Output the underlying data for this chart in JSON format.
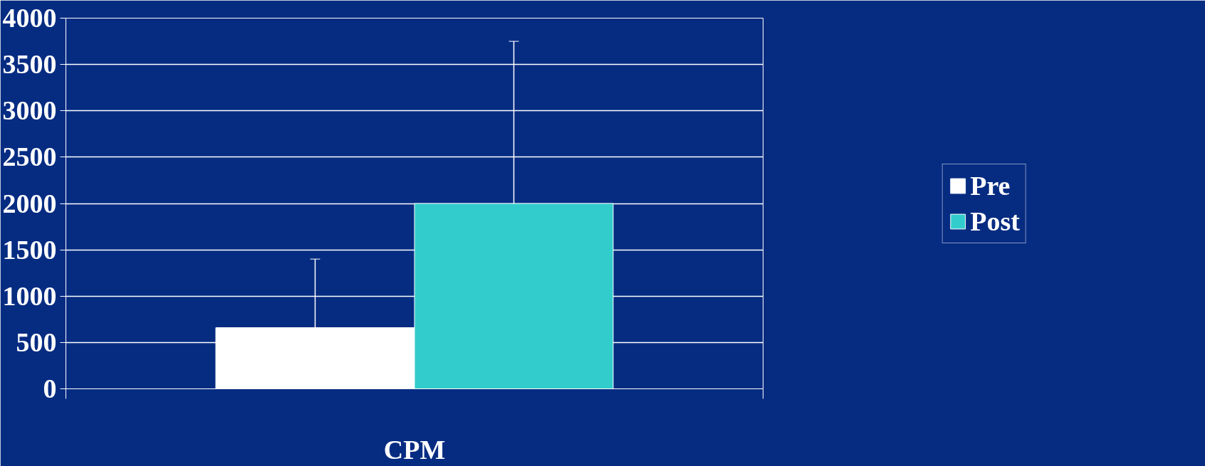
{
  "chart_data": {
    "type": "bar",
    "categories": [
      "CPM"
    ],
    "series": [
      {
        "name": "Pre",
        "color": "#ffffff",
        "values": [
          660
        ],
        "errors": [
          [
            660,
            1400
          ]
        ]
      },
      {
        "name": "Post",
        "color": "#33cccc",
        "values": [
          2000
        ],
        "errors": [
          [
            2000,
            3750
          ]
        ]
      }
    ],
    "ylim": [
      0,
      4000
    ],
    "yticks": [
      0,
      500,
      1000,
      1500,
      2000,
      2500,
      3000,
      3500,
      4000
    ],
    "grid": "y",
    "legend": "right"
  }
}
